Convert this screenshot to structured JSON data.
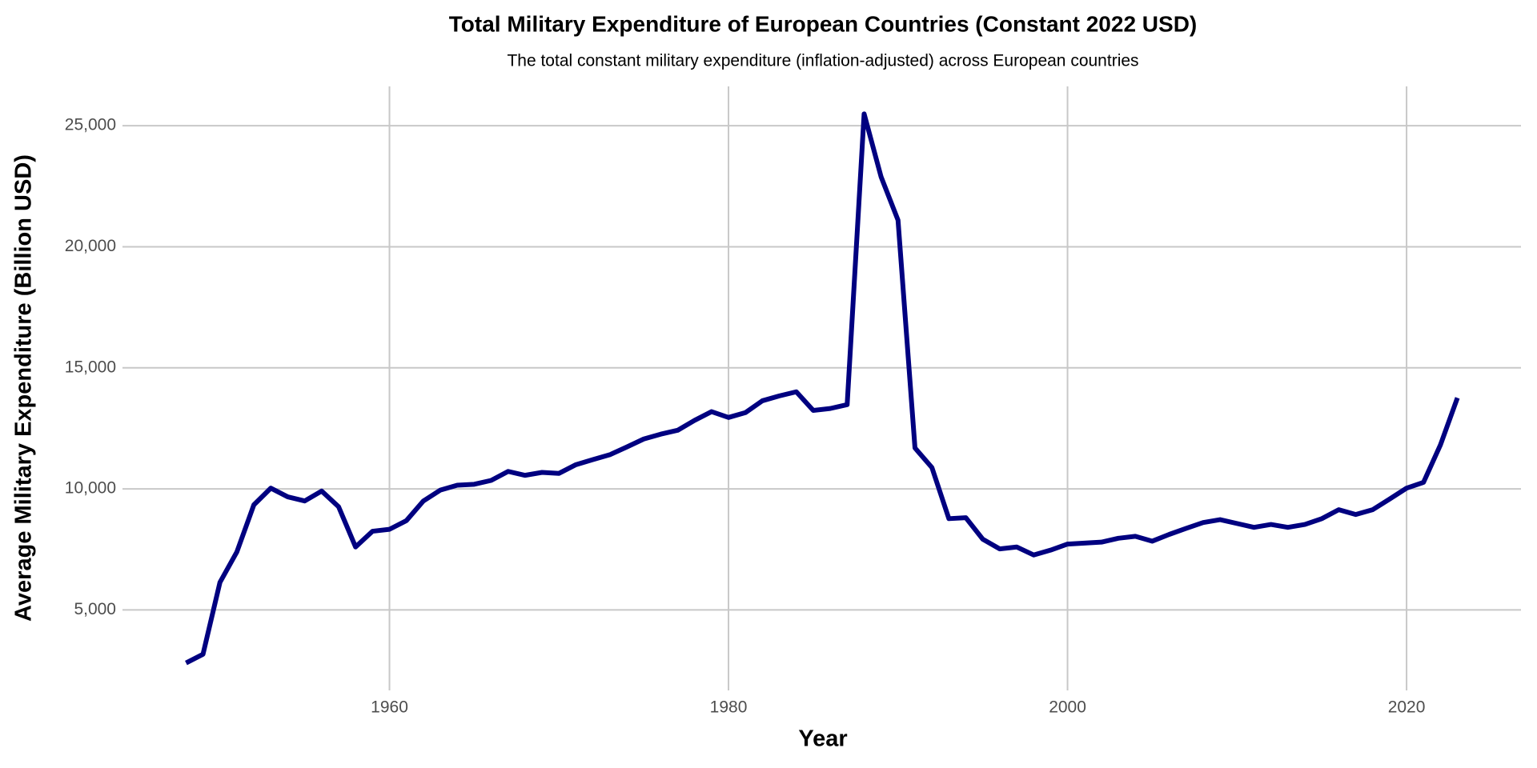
{
  "chart_data": {
    "type": "line",
    "title": "Total Military Expenditure of European Countries (Constant 2022 USD)",
    "subtitle": "The total constant military expenditure (inflation-adjusted) across European countries",
    "x_label": "Year",
    "y_label": "Average Military Expenditure (Billion USD)",
    "x": [
      1948,
      1949,
      1950,
      1951,
      1952,
      1953,
      1954,
      1955,
      1956,
      1957,
      1958,
      1959,
      1960,
      1961,
      1962,
      1963,
      1964,
      1965,
      1966,
      1967,
      1968,
      1969,
      1970,
      1971,
      1972,
      1973,
      1974,
      1975,
      1976,
      1977,
      1978,
      1979,
      1980,
      1981,
      1982,
      1983,
      1984,
      1985,
      1986,
      1987,
      1988,
      1989,
      1990,
      1991,
      1992,
      1993,
      1994,
      1995,
      1996,
      1997,
      1998,
      1999,
      2000,
      2001,
      2002,
      2003,
      2004,
      2005,
      2006,
      2007,
      2008,
      2009,
      2010,
      2011,
      2012,
      2013,
      2014,
      2015,
      2016,
      2017,
      2018,
      2019,
      2020,
      2021,
      2022,
      2023
    ],
    "values": [
      2810,
      3170,
      6140,
      7400,
      9340,
      10030,
      9670,
      9500,
      9910,
      9260,
      7600,
      8250,
      8330,
      8690,
      9500,
      9950,
      10150,
      10190,
      10350,
      10720,
      10560,
      10680,
      10640,
      11000,
      11210,
      11410,
      11730,
      12060,
      12260,
      12420,
      12830,
      13190,
      12950,
      13150,
      13640,
      13840,
      14010,
      13240,
      13320,
      13480,
      25490,
      22890,
      21100,
      11690,
      10880,
      8770,
      8810,
      7920,
      7520,
      7600,
      7270,
      7470,
      7720,
      7760,
      7800,
      7960,
      8040,
      7840,
      8120,
      8370,
      8610,
      8730,
      8570,
      8410,
      8530,
      8410,
      8530,
      8770,
      9140,
      8940,
      9140,
      9580,
      10030,
      10270,
      11820,
      13760
    ],
    "color": "#000080",
    "xlim": [
      1944.25,
      2026.75
    ],
    "xticks": [
      1960,
      1980,
      2000,
      2020
    ],
    "ylim": [
      1676,
      26624
    ],
    "yticks": [
      {
        "value": 5000,
        "label": "5,000"
      },
      {
        "value": 10000,
        "label": "10,000"
      },
      {
        "value": 15000,
        "label": "15,000"
      },
      {
        "value": 20000,
        "label": "20,000"
      },
      {
        "value": 25000,
        "label": "25,000"
      }
    ],
    "grid": true
  }
}
